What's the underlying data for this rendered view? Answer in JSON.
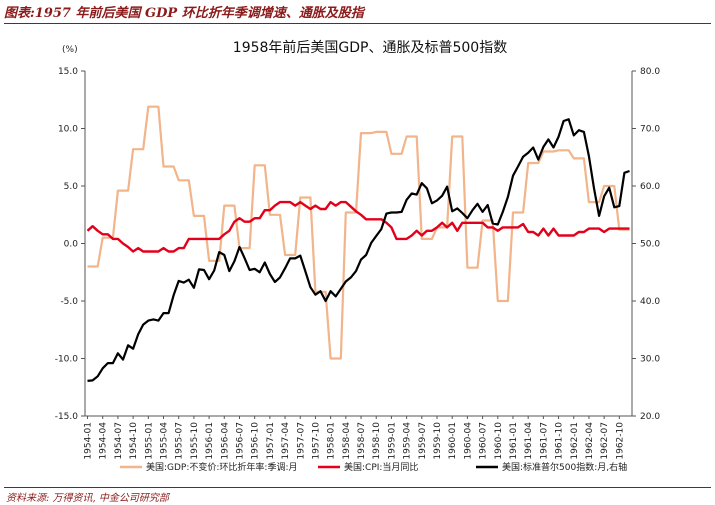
{
  "figure": {
    "header": "图表:1957 年前后美国 GDP 环比折年季调增速、通胀及股指",
    "source": "资料来源: 万得资讯, 中金公司研究部"
  },
  "chart_data": {
    "type": "line",
    "title": "1958年前后美国GDP、通胀及标普500指数",
    "ylabel_left": "(%)",
    "ylim_left": [
      -15,
      15
    ],
    "yticks_left": [
      "15.0",
      "10.0",
      "5.0",
      "0.0",
      "-5.0",
      "-10.0",
      "-15.0"
    ],
    "ylim_right": [
      20,
      80
    ],
    "yticks_right": [
      "80.0",
      "70.0",
      "60.0",
      "50.0",
      "40.0",
      "30.0",
      "20.0"
    ],
    "x_categories": [
      "1954-01",
      "1954-02",
      "1954-03",
      "1954-04",
      "1954-05",
      "1954-06",
      "1954-07",
      "1954-08",
      "1954-09",
      "1954-10",
      "1954-11",
      "1954-12",
      "1955-01",
      "1955-02",
      "1955-03",
      "1955-04",
      "1955-05",
      "1955-06",
      "1955-07",
      "1955-08",
      "1955-09",
      "1955-10",
      "1955-11",
      "1955-12",
      "1956-01",
      "1956-02",
      "1956-03",
      "1956-04",
      "1956-05",
      "1956-06",
      "1956-07",
      "1956-08",
      "1956-09",
      "1956-10",
      "1956-11",
      "1956-12",
      "1957-01",
      "1957-02",
      "1957-03",
      "1957-04",
      "1957-05",
      "1957-06",
      "1957-07",
      "1957-08",
      "1957-09",
      "1957-10",
      "1957-11",
      "1957-12",
      "1958-01",
      "1958-02",
      "1958-03",
      "1958-04",
      "1958-05",
      "1958-06",
      "1958-07",
      "1958-08",
      "1958-09",
      "1958-10",
      "1958-11",
      "1958-12",
      "1959-01",
      "1959-02",
      "1959-03",
      "1959-04",
      "1959-05",
      "1959-06",
      "1959-07",
      "1959-08",
      "1959-09",
      "1959-10",
      "1959-11",
      "1959-12",
      "1960-01",
      "1960-02",
      "1960-03",
      "1960-04",
      "1960-05",
      "1960-06",
      "1960-07",
      "1960-08",
      "1960-09",
      "1960-10",
      "1960-11",
      "1960-12",
      "1961-01",
      "1961-02",
      "1961-03",
      "1961-04",
      "1961-05",
      "1961-06",
      "1961-07",
      "1961-08",
      "1961-09",
      "1961-10",
      "1961-11",
      "1961-12",
      "1962-01",
      "1962-02",
      "1962-03",
      "1962-04",
      "1962-05",
      "1962-06",
      "1962-07",
      "1962-08",
      "1962-09",
      "1962-10",
      "1962-11",
      "1962-12"
    ],
    "x_tick_labels": [
      "1954-01",
      "1954-04",
      "1954-07",
      "1954-10",
      "1955-01",
      "1955-04",
      "1955-07",
      "1955-10",
      "1956-01",
      "1956-04",
      "1956-07",
      "1956-10",
      "1957-01",
      "1957-04",
      "1957-07",
      "1957-10",
      "1958-01",
      "1958-04",
      "1958-07",
      "1958-10",
      "1959-01",
      "1959-04",
      "1959-07",
      "1959-10",
      "1960-01",
      "1960-04",
      "1960-07",
      "1960-10",
      "1961-01",
      "1961-04",
      "1961-07",
      "1961-10",
      "1962-01",
      "1962-04",
      "1962-07",
      "1962-10"
    ],
    "series": [
      {
        "name": "美国:GDP:不变价:环比折年率:季调:月",
        "axis": "left",
        "color": "#f2b48a",
        "values": [
          -2.0,
          -2.0,
          -2.0,
          0.5,
          0.5,
          0.5,
          4.6,
          4.6,
          4.6,
          8.2,
          8.2,
          8.2,
          11.9,
          11.9,
          11.9,
          6.7,
          6.7,
          6.7,
          5.5,
          5.5,
          5.5,
          2.4,
          2.4,
          2.4,
          -1.5,
          -1.5,
          -1.5,
          3.3,
          3.3,
          3.3,
          -0.4,
          -0.4,
          -0.4,
          6.8,
          6.8,
          6.8,
          2.5,
          2.5,
          2.5,
          -1.0,
          -1.0,
          -1.0,
          4.0,
          4.0,
          4.0,
          -4.2,
          -4.2,
          -4.2,
          -10.0,
          -10.0,
          -10.0,
          2.7,
          2.7,
          2.7,
          9.6,
          9.6,
          9.6,
          9.7,
          9.7,
          9.7,
          7.8,
          7.8,
          7.8,
          9.3,
          9.3,
          9.3,
          0.4,
          0.4,
          0.4,
          1.4,
          1.4,
          1.4,
          9.3,
          9.3,
          9.3,
          -2.1,
          -2.1,
          -2.1,
          2.0,
          2.0,
          2.0,
          -5.0,
          -5.0,
          -5.0,
          2.7,
          2.7,
          2.7,
          7.0,
          7.0,
          7.0,
          8.0,
          8.0,
          8.0,
          8.1,
          8.1,
          8.1,
          7.4,
          7.4,
          7.4,
          3.6,
          3.6,
          3.6,
          5.0,
          5.0,
          5.0,
          1.2,
          1.2,
          1.2
        ]
      },
      {
        "name": "美国:CPI:当月同比",
        "axis": "left",
        "color": "#e3001b",
        "values": [
          1.1,
          1.5,
          1.1,
          0.8,
          0.8,
          0.4,
          0.4,
          0.0,
          -0.3,
          -0.7,
          -0.4,
          -0.7,
          -0.7,
          -0.7,
          -0.7,
          -0.4,
          -0.7,
          -0.7,
          -0.4,
          -0.4,
          0.4,
          0.4,
          0.4,
          0.4,
          0.4,
          0.4,
          0.4,
          0.8,
          1.1,
          1.9,
          2.2,
          1.9,
          1.9,
          2.2,
          2.2,
          2.9,
          2.9,
          3.3,
          3.6,
          3.6,
          3.6,
          3.3,
          3.6,
          3.3,
          3.0,
          3.3,
          3.0,
          3.0,
          3.6,
          3.3,
          3.6,
          3.6,
          3.2,
          2.8,
          2.5,
          2.1,
          2.1,
          2.1,
          2.1,
          1.8,
          1.4,
          0.4,
          0.4,
          0.4,
          0.7,
          1.1,
          0.7,
          1.1,
          1.1,
          1.4,
          1.8,
          1.4,
          1.8,
          1.1,
          1.8,
          1.8,
          1.8,
          1.8,
          1.8,
          1.4,
          1.4,
          1.1,
          1.4,
          1.4,
          1.4,
          1.4,
          1.7,
          1.0,
          1.0,
          0.7,
          1.3,
          0.7,
          1.3,
          0.7,
          0.7,
          0.7,
          0.7,
          1.0,
          1.0,
          1.3,
          1.3,
          1.3,
          1.0,
          1.3,
          1.3,
          1.3,
          1.3,
          1.3
        ]
      },
      {
        "name": "美国:标准普尔500指数:月,右轴",
        "axis": "right",
        "color": "#000000",
        "values": [
          26.1,
          26.2,
          26.9,
          28.3,
          29.2,
          29.2,
          30.9,
          29.8,
          32.3,
          31.7,
          34.2,
          35.9,
          36.6,
          36.8,
          36.6,
          37.9,
          37.9,
          41.0,
          43.5,
          43.2,
          43.7,
          42.3,
          45.5,
          45.4,
          43.8,
          45.3,
          48.5,
          48.0,
          45.2,
          46.9,
          49.4,
          47.5,
          45.4,
          45.6,
          45.0,
          46.7,
          44.7,
          43.3,
          44.1,
          45.7,
          47.4,
          47.4,
          47.9,
          45.2,
          42.4,
          41.1,
          41.7,
          40.0,
          41.7,
          40.8,
          42.1,
          43.4,
          44.1,
          45.2,
          47.2,
          48.0,
          50.1,
          51.3,
          52.5,
          55.2,
          55.4,
          55.4,
          55.5,
          57.6,
          58.7,
          58.5,
          60.5,
          59.6,
          57.0,
          57.5,
          58.3,
          59.9,
          55.6,
          56.1,
          55.3,
          54.4,
          55.8,
          56.9,
          55.5,
          56.7,
          53.5,
          53.3,
          55.5,
          58.1,
          61.8,
          63.4,
          65.1,
          65.8,
          66.7,
          64.6,
          66.8,
          68.1,
          66.7,
          68.6,
          71.3,
          71.6,
          68.8,
          69.7,
          69.4,
          65.2,
          59.6,
          54.8,
          58.2,
          59.7,
          56.3,
          56.5,
          62.3,
          62.6
        ]
      }
    ],
    "legend": [
      "美国:GDP:不变价:环比折年率:季调:月",
      "美国:CPI:当月同比",
      "美国:标准普尔500指数:月,右轴"
    ],
    "legend_position": "bottom",
    "grid": false
  }
}
